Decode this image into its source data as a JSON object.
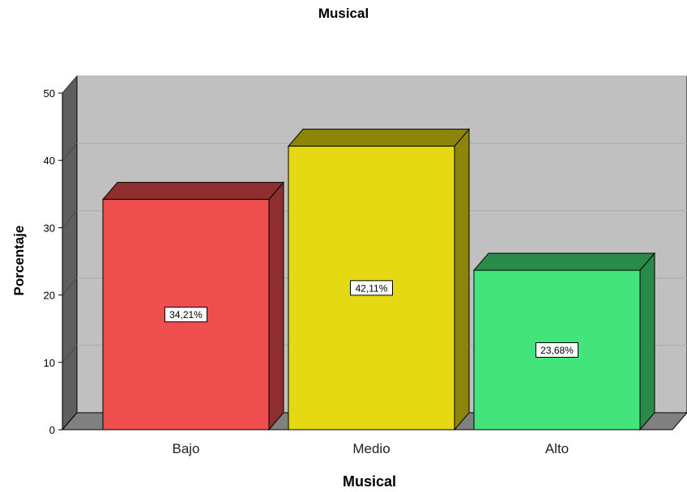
{
  "chart_data": {
    "type": "bar",
    "title": "Musical",
    "xlabel": "Musical",
    "ylabel": "Porcentaje",
    "categories": [
      "Bajo",
      "Medio",
      "Alto"
    ],
    "values": [
      34.21,
      42.11,
      23.68
    ],
    "data_labels": [
      "34,21%",
      "42,11%",
      "23,68%"
    ],
    "yticks": [
      0,
      10,
      20,
      30,
      40,
      50
    ],
    "ylim": [
      0,
      50
    ],
    "grid": true,
    "legend": "none",
    "style": "3d",
    "colors": [
      "#ef4e4e",
      "#e4d912",
      "#42e47b"
    ],
    "side_colors": [
      "#8f2e2e",
      "#8c8508",
      "#2a8a4a"
    ],
    "wall_color": "#c0c0c0",
    "floor_color": "#808080"
  }
}
